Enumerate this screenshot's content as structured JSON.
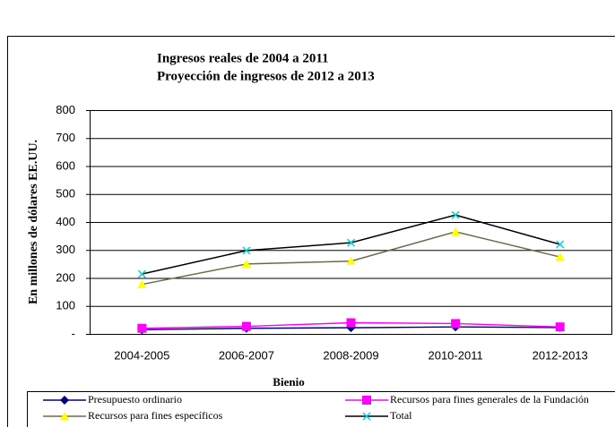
{
  "chart_data": {
    "type": "line",
    "title": "Ingresos reales de 2004 a 2011",
    "subtitle": "Proyección de ingresos de 2012 a 2013",
    "y_label": "En millones de dólares EE.UU.",
    "x_label": "Bienio",
    "categories": [
      "2004-2005",
      "2006-2007",
      "2008-2009",
      "2010-2011",
      "2012-2013"
    ],
    "series": [
      {
        "name": "Presupuesto ordinario",
        "color": "#000080",
        "marker": "diamond",
        "marker_color": "#000080",
        "values": [
          15,
          20,
          22,
          25,
          23
        ]
      },
      {
        "name": "Recursos para fines generales de la Fundación",
        "color": "#ff00ff",
        "marker": "square",
        "marker_color": "#ff00ff",
        "values": [
          20,
          27,
          40,
          37,
          25
        ]
      },
      {
        "name": "Recursos para fines específicos",
        "color": "#6b6b48",
        "marker": "triangle",
        "marker_color": "#ffff00",
        "values": [
          177,
          250,
          260,
          365,
          275
        ]
      },
      {
        "name": "Total",
        "color": "#000000",
        "marker": "x",
        "marker_color": "#00d0e0",
        "values": [
          214,
          298,
          326,
          425,
          320
        ]
      }
    ],
    "ylim": [
      0,
      800
    ],
    "yticks": [
      {
        "value": 0,
        "label": "-"
      },
      100,
      200,
      300,
      400,
      500,
      600,
      700,
      800
    ],
    "grid": true
  }
}
